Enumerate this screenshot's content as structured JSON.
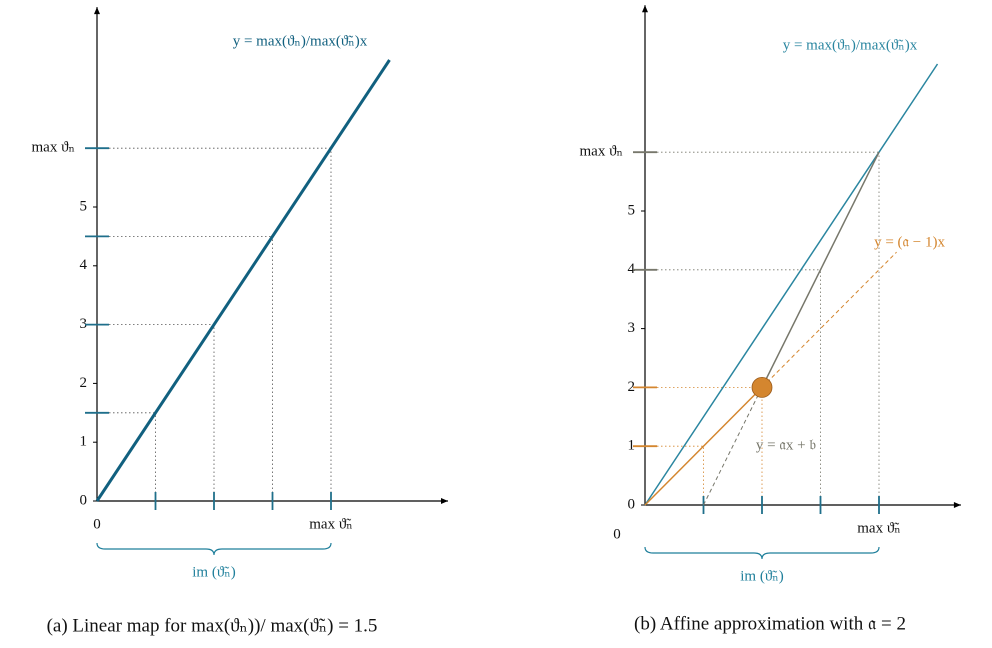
{
  "chart_data": [
    {
      "type": "line",
      "caption": "(a) Linear map for max(ϑₙ))/ max(ϑ̃ₙ) = 1.5",
      "xlim": [
        0,
        6
      ],
      "ylim": [
        0,
        8.4
      ],
      "xticks": [
        0,
        {
          "value": 4,
          "label": "max ϑ̃ₙ"
        }
      ],
      "yticks": [
        0,
        1,
        2,
        3,
        4,
        5,
        {
          "value": 6,
          "label": "max ϑₙ"
        }
      ],
      "marked_x": [
        1,
        2,
        3,
        4
      ],
      "marked_x_colors": [
        "#1f6f8b",
        "#1f6f8b",
        "#1f6f8b",
        "#1f6f8b"
      ],
      "marked_y": [
        1.5,
        3,
        4.5,
        6
      ],
      "marked_y_colors": [
        "#1f6f8b",
        "#1f6f8b",
        "#1f6f8b",
        "#1f6f8b"
      ],
      "series": [
        {
          "label": "y = max(ϑₙ)/max(ϑ̃ₙ)x",
          "color": "#11607f",
          "x": [
            0,
            5
          ],
          "values": [
            0,
            7.5
          ],
          "dashed": false,
          "width": 3
        }
      ],
      "guides": {
        "x": [
          1,
          2,
          3,
          4
        ],
        "y": [
          1.5,
          3,
          4.5,
          6
        ],
        "colors": [
          "#555",
          "#555",
          "#555",
          "#555"
        ]
      },
      "bracket": {
        "label": "im (ϑ̃ₙ)",
        "from": 0,
        "to": 4,
        "color": "#1f7f9b"
      }
    },
    {
      "type": "line",
      "caption": "(b) Affine approximation with 𝔞 = 2",
      "xlim": [
        0,
        5.4
      ],
      "ylim": [
        0,
        8.5
      ],
      "xticks": [
        {
          "value": 0,
          "label": "0"
        },
        {
          "value": 4,
          "label": "max ϑ̃ₙ"
        }
      ],
      "yticks": [
        0,
        1,
        2,
        3,
        4,
        5,
        {
          "value": 6,
          "label": "max ϑₙ"
        }
      ],
      "marked_x": [
        1,
        2,
        3,
        4
      ],
      "marked_x_colors": [
        "#1f6f8b",
        "#1f6f8b",
        "#1f6f8b",
        "#1f6f8b"
      ],
      "marked_y": [
        1,
        2,
        4,
        6
      ],
      "marked_y_colors": [
        "#d4862f",
        "#d4862f",
        "#77776b",
        "#77776b"
      ],
      "series": [
        {
          "label": "y = max(ϑₙ)/max(ϑ̃ₙ)x",
          "color": "#2a86a0",
          "x": [
            0,
            5
          ],
          "values": [
            0,
            7.5
          ],
          "dashed": false,
          "width": 1.5
        },
        {
          "label": "y = 𝔞x + 𝔟",
          "color": "#77776b",
          "x": [
            1,
            2
          ],
          "values": [
            0,
            2
          ],
          "dashed": true,
          "width": 1
        },
        {
          "color": "#77776b",
          "x": [
            2,
            4
          ],
          "values": [
            2,
            6
          ],
          "dashed": false,
          "width": 1.5
        },
        {
          "color": "#d4862f",
          "x": [
            0,
            2
          ],
          "values": [
            0,
            2
          ],
          "dashed": false,
          "width": 1.5
        },
        {
          "label": "y = (𝔞 − 1)x",
          "color": "#d4862f",
          "x": [
            2,
            4.3
          ],
          "values": [
            2,
            4.3
          ],
          "dashed": true,
          "width": 1
        }
      ],
      "guides": {
        "x": [
          1,
          2,
          3,
          4
        ],
        "y": [
          1,
          2,
          4,
          6
        ],
        "colors": [
          "#d4862f",
          "#d4862f",
          "#77776b",
          "#77776b"
        ]
      },
      "points": {
        "x": [
          2
        ],
        "y": [
          2
        ],
        "color": "#d4862f"
      },
      "bracket": {
        "label": "im (ϑ̃ₙ)",
        "from": 0,
        "to": 4,
        "color": "#1f7f9b"
      }
    }
  ]
}
